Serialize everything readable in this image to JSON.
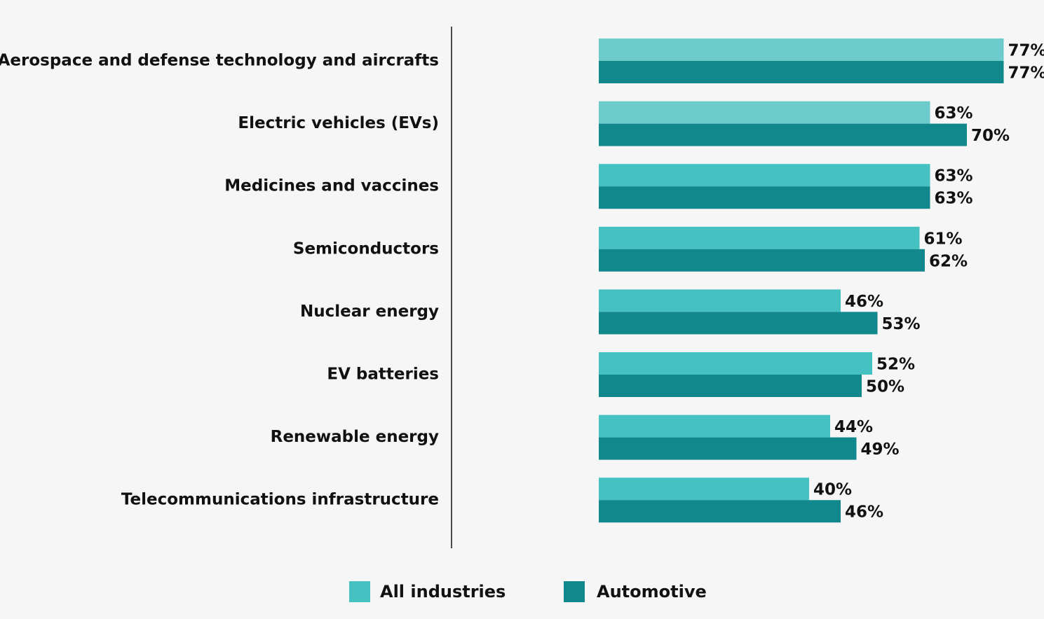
{
  "chart_data": {
    "type": "hbar",
    "categories": [
      "Aerospace and defense technology and aircrafts",
      "Electric vehicles (EVs)",
      "Medicines and vaccines",
      "Semiconductors",
      "Nuclear energy",
      "EV batteries",
      "Renewable energy",
      "Telecommunications infrastructure"
    ],
    "series": [
      {
        "name": "All industries",
        "color": "#45c1c1",
        "colors": [
          "#6ecbcb",
          "#6ecbcb",
          "#45c1c1",
          "#45c1c1",
          "#45c1c1",
          "#45c1c1",
          "#45c1c1",
          "#45c1c1"
        ],
        "values": [
          77,
          63,
          63,
          61,
          46,
          52,
          44,
          40
        ],
        "value_labels": [
          "77%",
          "63%",
          "63%",
          "61%",
          "46%",
          "52%",
          "44%",
          "40%"
        ]
      },
      {
        "name": "Automotive",
        "color": "#10888c",
        "values": [
          77,
          70,
          63,
          62,
          53,
          50,
          49,
          46
        ],
        "value_labels": [
          "77%",
          "70%",
          "63%",
          "62%",
          "53%",
          "50%",
          "49%",
          "46%"
        ]
      }
    ],
    "xlim": [
      -28,
      80
    ],
    "legend": "bottom"
  }
}
